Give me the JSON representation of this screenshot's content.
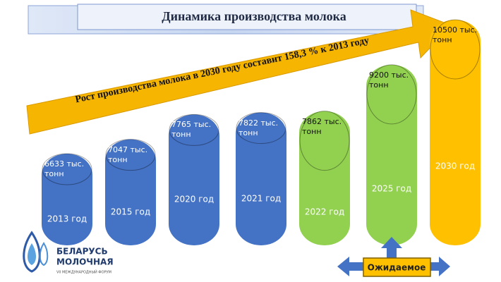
{
  "chart_data": {
    "type": "cylinder",
    "title": "Динамика производства молока",
    "annotation": "Рост производства  молока в 2030 году составит 158,3 % к 2013 году",
    "categories": [
      "2013 год",
      "2015 год",
      "2020 год",
      "2021 год",
      "2022 год",
      "2025 год",
      "2030 год"
    ],
    "values": [
      6633,
      7047,
      7765,
      7822,
      7862,
      9200,
      10500
    ],
    "value_labels": [
      "6633 тыс. тонн",
      "7047 тыс. тонн",
      "7765 тыс. тонн",
      "7822 тыс. тонн",
      "7862 тыс. тонн",
      "9200 тыс. тонн",
      "10500 тыс. тонн"
    ],
    "colors": [
      "#4472c4",
      "#4472c4",
      "#4472c4",
      "#4472c4",
      "#92d050",
      "#92d050",
      "#ffc000"
    ],
    "expected_label": "Ожидаемое",
    "logo": {
      "line1": "БЕЛАРУСЬ",
      "line2": "МОЛОЧНАЯ",
      "line3": "VII МЕЖДУНАРОДНЫЙ ФОРУМ"
    }
  }
}
